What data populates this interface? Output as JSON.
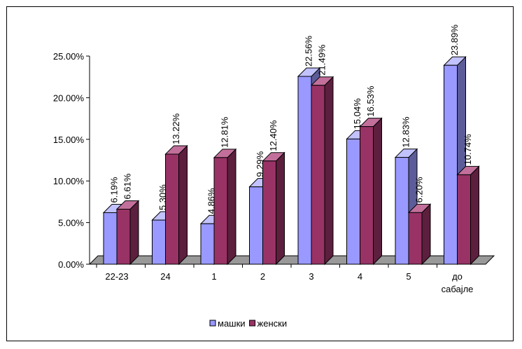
{
  "chart_data": {
    "type": "bar",
    "style": "3d-clustered-column",
    "categories": [
      [
        "22-23"
      ],
      [
        "24"
      ],
      [
        "1"
      ],
      [
        "2"
      ],
      [
        "3"
      ],
      [
        "4"
      ],
      [
        "5"
      ],
      [
        "до",
        "сабајле"
      ]
    ],
    "series": [
      {
        "name": "машки",
        "values": [
          6.19,
          5.3,
          4.86,
          9.29,
          22.56,
          15.04,
          12.83,
          23.89
        ],
        "labels": [
          "6.19%",
          "5.30%",
          "4.86%",
          "9.29%",
          "22.56%",
          "15.04%",
          "12.83%",
          "23.89%"
        ],
        "color": "#9999ff",
        "side_color": "#5c5c99",
        "top_color": "#c2c2ff"
      },
      {
        "name": "женски",
        "values": [
          6.61,
          13.22,
          12.81,
          12.4,
          21.49,
          16.53,
          6.2,
          10.74
        ],
        "labels": [
          "6.61%",
          "13.22%",
          "12.81%",
          "12.40%",
          "21.49%",
          "16.53%",
          "6.20%",
          "10.74%"
        ],
        "color": "#993366",
        "side_color": "#5c1f3d",
        "top_color": "#c2709b"
      }
    ],
    "y_ticks": [
      0,
      5,
      10,
      15,
      20,
      25
    ],
    "y_tick_labels": [
      "0.00%",
      "5.00%",
      "10.00%",
      "15.00%",
      "20.00%",
      "25.00%"
    ],
    "ylim": [
      0,
      25
    ],
    "grid": false,
    "floor_color": "#999999",
    "legend_position": "bottom"
  }
}
